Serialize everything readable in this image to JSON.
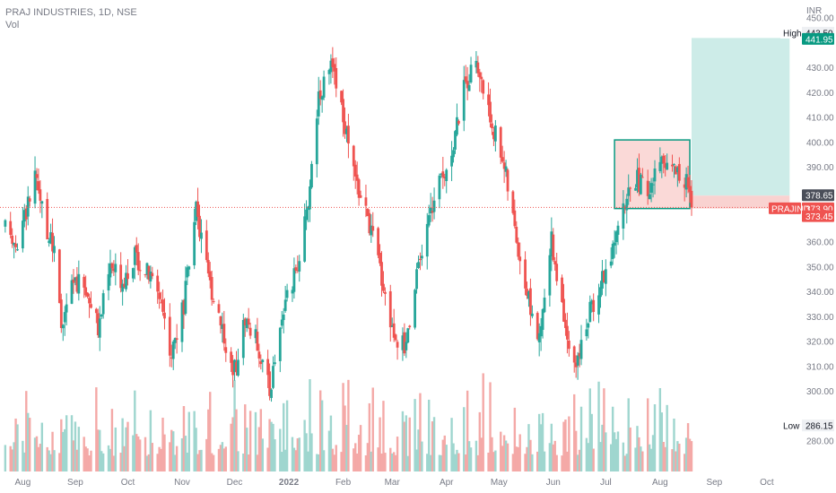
{
  "header": {
    "title": "PRAJ INDUSTRIES, 1D, NSE",
    "volume_label": "Vol"
  },
  "colors": {
    "up": "#26a69a",
    "down": "#ef5350",
    "up_volume": "#9fd6cf",
    "down_volume": "#f4a9a7",
    "profit_zone": "#cdece8",
    "loss_zone": "#f9d2d0",
    "box_border": "#089981",
    "price_line": "#ef5350"
  },
  "chart_data": {
    "type": "candlestick",
    "title": "PRAJ INDUSTRIES, 1D, NSE",
    "currency": "INR",
    "y_range": [
      270,
      450
    ],
    "y_ticks": [
      280,
      290,
      300,
      310,
      320,
      330,
      340,
      350,
      360,
      370,
      380,
      390,
      400,
      410,
      420,
      430,
      440,
      450
    ],
    "x_labels": [
      "Aug",
      "Sep",
      "Oct",
      "Nov",
      "Dec",
      "2022",
      "Feb",
      "Mar",
      "Apr",
      "May",
      "Jun",
      "Jul",
      "Aug",
      "Sep",
      "Oct"
    ],
    "price_path": [
      [
        "2021-07-23",
        365
      ],
      [
        "2021-07-30",
        360
      ],
      [
        "2021-08-06",
        378
      ],
      [
        "2021-08-09",
        385
      ],
      [
        "2021-08-13",
        372
      ],
      [
        "2021-08-20",
        355
      ],
      [
        "2021-08-24",
        325
      ],
      [
        "2021-08-31",
        345
      ],
      [
        "2021-09-07",
        340
      ],
      [
        "2021-09-14",
        325
      ],
      [
        "2021-09-21",
        350
      ],
      [
        "2021-09-28",
        345
      ],
      [
        "2021-10-05",
        355
      ],
      [
        "2021-10-12",
        348
      ],
      [
        "2021-10-19",
        340
      ],
      [
        "2021-10-26",
        315
      ],
      [
        "2021-11-02",
        335
      ],
      [
        "2021-11-09",
        372
      ],
      [
        "2021-11-16",
        345
      ],
      [
        "2021-11-23",
        330
      ],
      [
        "2021-11-30",
        305
      ],
      [
        "2021-12-07",
        330
      ],
      [
        "2021-12-14",
        320
      ],
      [
        "2021-12-21",
        300
      ],
      [
        "2021-12-28",
        330
      ],
      [
        "2022-01-04",
        345
      ],
      [
        "2022-01-11",
        370
      ],
      [
        "2022-01-18",
        420
      ],
      [
        "2022-01-25",
        430
      ],
      [
        "2022-02-01",
        410
      ],
      [
        "2022-02-08",
        385
      ],
      [
        "2022-02-15",
        370
      ],
      [
        "2022-02-22",
        350
      ],
      [
        "2022-03-01",
        325
      ],
      [
        "2022-03-08",
        318
      ],
      [
        "2022-03-15",
        345
      ],
      [
        "2022-03-22",
        370
      ],
      [
        "2022-03-29",
        385
      ],
      [
        "2022-04-05",
        400
      ],
      [
        "2022-04-12",
        425
      ],
      [
        "2022-04-19",
        430
      ],
      [
        "2022-04-26",
        410
      ],
      [
        "2022-05-03",
        395
      ],
      [
        "2022-05-10",
        365
      ],
      [
        "2022-05-17",
        340
      ],
      [
        "2022-05-24",
        320
      ],
      [
        "2022-05-31",
        360
      ],
      [
        "2022-06-07",
        330
      ],
      [
        "2022-06-14",
        310
      ],
      [
        "2022-06-21",
        330
      ],
      [
        "2022-06-28",
        345
      ],
      [
        "2022-07-05",
        355
      ],
      [
        "2022-07-12",
        375
      ],
      [
        "2022-07-19",
        385
      ],
      [
        "2022-07-26",
        380
      ],
      [
        "2022-08-02",
        395
      ],
      [
        "2022-08-09",
        390
      ],
      [
        "2022-08-16",
        385
      ],
      [
        "2022-08-19",
        373.9
      ]
    ],
    "high": {
      "label": "High",
      "value": "443.50"
    },
    "low": {
      "label": "Low",
      "value": "286.15"
    },
    "price_tags": [
      {
        "value": "441.95",
        "name": "target",
        "style": "green"
      },
      {
        "value": "378.65",
        "name": "entry",
        "style": "gray"
      },
      {
        "value": "373.90",
        "name": "last",
        "style": "red",
        "symbol": "PRAJIND"
      },
      {
        "value": "373.45",
        "name": "stop",
        "style": "red"
      }
    ],
    "consolidation_box": {
      "from": "2022-07-06",
      "to": "2022-08-18",
      "low": 373.45,
      "high": 401
    },
    "position": {
      "from": "2022-08-19",
      "to": "2022-10-14",
      "entry": 378.65,
      "target": 441.95,
      "stop": 373.45
    },
    "last_price": 373.9
  }
}
